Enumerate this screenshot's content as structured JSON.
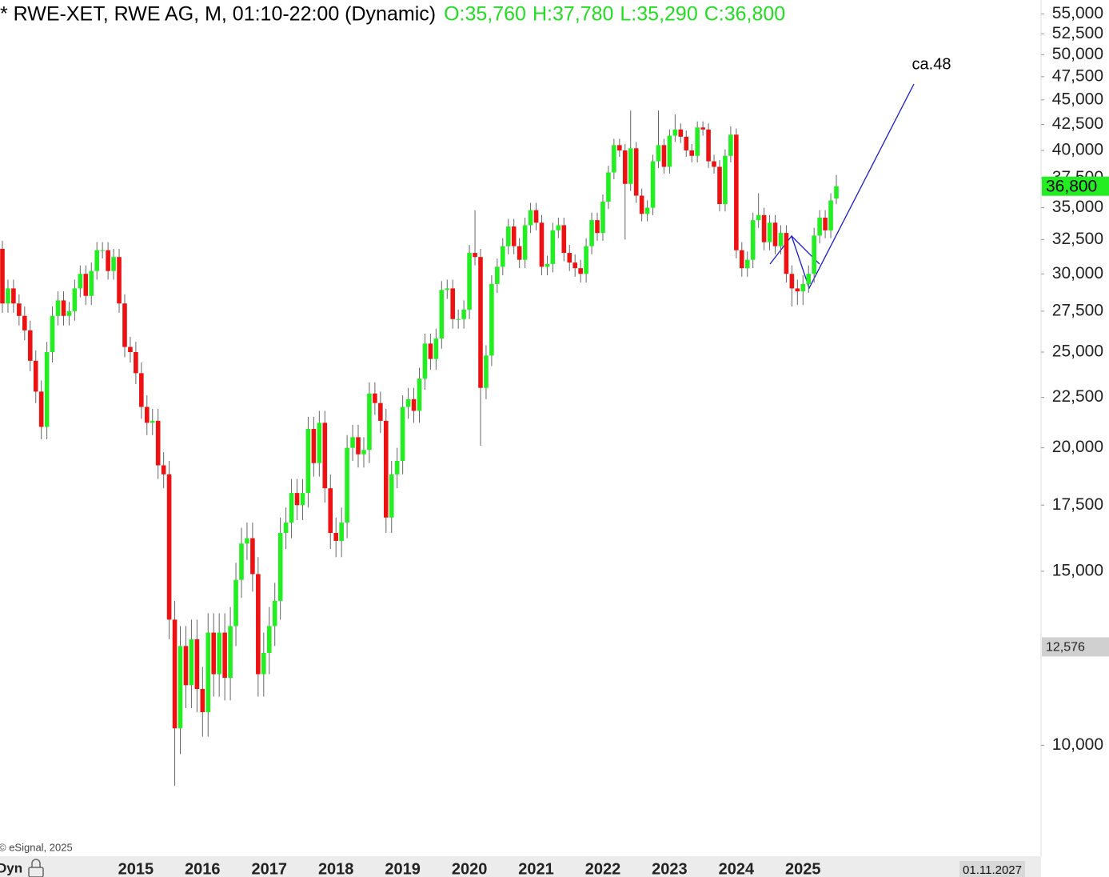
{
  "chart_data": {
    "type": "candlestick",
    "title": "* RWE-XET, RWE AG, M, 01:10-22:00 (Dynamic)",
    "ohlc_labels": [
      "O:35,760",
      "H:37,780",
      "L:35,290",
      "C:36,800"
    ],
    "annotation": "ca.48",
    "copyright": "© eSignal, 2025",
    "mode_label": "Dyn",
    "date_tag": "01.11.2027",
    "last_price": {
      "value": 36.8,
      "label": "36,800"
    },
    "marker_price": {
      "value": 12.576,
      "label": "12,576"
    },
    "log_scale": true,
    "up_color": "#22ee22",
    "down_color": "#ee1111",
    "ylim": [
      7.72,
      56.8
    ],
    "yticks": [
      {
        "value": 10,
        "label": "10,000"
      },
      {
        "value": 15,
        "label": "15,000"
      },
      {
        "value": 17.5,
        "label": "17,500"
      },
      {
        "value": 20,
        "label": "20,000"
      },
      {
        "value": 22.5,
        "label": "22,500"
      },
      {
        "value": 25,
        "label": "25,000"
      },
      {
        "value": 27.5,
        "label": "27,500"
      },
      {
        "value": 30,
        "label": "30,000"
      },
      {
        "value": 32.5,
        "label": "32,500"
      },
      {
        "value": 35,
        "label": "35,000"
      },
      {
        "value": 37.5,
        "label": "37,500"
      },
      {
        "value": 40,
        "label": "40,000"
      },
      {
        "value": 42.5,
        "label": "42,500"
      },
      {
        "value": 45,
        "label": "45,000"
      },
      {
        "value": 47.5,
        "label": "47,500"
      },
      {
        "value": 50,
        "label": "50,000"
      },
      {
        "value": 52.5,
        "label": "52,500"
      },
      {
        "value": 55,
        "label": "55,000"
      }
    ],
    "categories": [
      null,
      null,
      null,
      null,
      null,
      null,
      null,
      null,
      null,
      null,
      null,
      null,
      null,
      null,
      null,
      null,
      null,
      null,
      null,
      null,
      null,
      null,
      null,
      null,
      "2015",
      null,
      null,
      null,
      null,
      null,
      null,
      null,
      null,
      null,
      null,
      null,
      "2016",
      null,
      null,
      null,
      null,
      null,
      null,
      null,
      null,
      null,
      null,
      null,
      "2017",
      null,
      null,
      null,
      null,
      null,
      null,
      null,
      null,
      null,
      null,
      null,
      "2018",
      null,
      null,
      null,
      null,
      null,
      null,
      null,
      null,
      null,
      null,
      null,
      "2019",
      null,
      null,
      null,
      null,
      null,
      null,
      null,
      null,
      null,
      null,
      null,
      "2020",
      null,
      null,
      null,
      null,
      null,
      null,
      null,
      null,
      null,
      null,
      null,
      "2021",
      null,
      null,
      null,
      null,
      null,
      null,
      null,
      null,
      null,
      null,
      null,
      "2022",
      null,
      null,
      null,
      null,
      null,
      null,
      null,
      null,
      null,
      null,
      null,
      "2023",
      null,
      null,
      null,
      null,
      null,
      null,
      null,
      null,
      null,
      null,
      null,
      "2024",
      null,
      null,
      null,
      null,
      null,
      null,
      null,
      null,
      null,
      null,
      null,
      "2025",
      null,
      null,
      null,
      null,
      null,
      null
    ],
    "open": [
      31.8,
      28.0,
      29.0,
      28.0,
      27.2,
      26.3,
      24.5,
      22.8,
      21.0,
      25.0,
      27.2,
      28.2,
      27.2,
      27.5,
      29.0,
      30.0,
      28.5,
      30.2,
      31.7,
      31.7,
      30.2,
      31.2,
      28.0,
      25.3,
      25.0,
      23.8,
      22.0,
      21.2,
      21.3,
      19.2,
      18.8,
      13.4,
      10.4,
      12.6,
      11.5,
      12.8,
      11.4,
      10.8,
      13.0,
      11.8,
      13.0,
      11.7,
      13.2,
      14.7,
      16.0,
      16.2,
      14.9,
      11.8,
      12.4,
      13.2,
      14.0,
      16.4,
      16.8,
      18.0,
      17.5,
      18.0,
      20.9,
      19.3,
      21.2,
      18.2,
      16.4,
      16.1,
      16.8,
      20.0,
      20.5,
      19.7,
      19.9,
      22.7,
      22.2,
      21.3,
      17.0,
      18.8,
      19.4,
      22.0,
      22.4,
      21.8,
      23.5,
      25.5,
      24.6,
      25.8,
      28.9,
      29.0,
      27.0,
      27.0,
      27.6,
      31.5,
      31.2,
      23.0,
      24.8,
      29.3,
      30.5,
      32.0,
      33.5,
      32.0,
      31.0,
      33.6,
      34.8,
      33.8,
      30.5,
      30.7,
      33.2,
      33.6,
      31.5,
      30.8,
      30.4,
      30.0,
      32.0,
      34.0,
      33.0,
      35.5,
      38.0,
      40.5,
      40.0,
      37.0,
      40.2,
      36.0,
      34.5,
      35.0,
      39.0,
      40.5,
      38.5,
      41.4,
      42.0,
      41.3,
      40.0,
      39.5,
      42.2,
      42.0,
      39.0,
      38.5,
      35.3,
      39.5,
      41.5,
      31.7,
      30.4,
      31.0,
      34.0,
      34.4,
      32.3,
      33.8,
      32.0,
      33.0,
      30.0,
      29.0,
      28.8,
      29.3,
      30.0,
      32.8,
      34.2,
      33.2,
      35.76
    ],
    "high": [
      32.4,
      29.6,
      29.6,
      28.6,
      27.8,
      26.9,
      25.1,
      23.4,
      25.6,
      27.8,
      28.8,
      28.8,
      28.1,
      29.6,
      30.6,
      30.6,
      30.8,
      32.3,
      32.3,
      32.3,
      31.8,
      31.8,
      28.6,
      25.9,
      25.6,
      24.4,
      22.6,
      21.9,
      21.9,
      19.8,
      19.4,
      14.0,
      13.2,
      13.2,
      13.4,
      13.4,
      12.0,
      13.6,
      13.6,
      13.6,
      13.6,
      13.8,
      15.3,
      16.6,
      16.8,
      16.8,
      15.5,
      13.0,
      13.8,
      14.6,
      17.0,
      17.4,
      18.6,
      18.6,
      18.6,
      21.5,
      21.5,
      21.8,
      21.8,
      18.8,
      17.0,
      17.4,
      20.6,
      21.1,
      21.1,
      20.5,
      23.3,
      23.3,
      22.8,
      21.9,
      19.4,
      20.0,
      22.6,
      23.0,
      23.0,
      24.1,
      26.1,
      26.1,
      26.4,
      29.5,
      29.6,
      29.6,
      27.6,
      28.2,
      32.1,
      34.8,
      31.8,
      25.4,
      29.9,
      31.1,
      32.6,
      34.1,
      34.1,
      32.6,
      34.2,
      35.4,
      35.4,
      34.4,
      31.3,
      33.8,
      34.2,
      34.2,
      32.1,
      31.4,
      31.0,
      32.6,
      34.6,
      34.6,
      36.1,
      38.6,
      41.1,
      41.1,
      40.6,
      43.9,
      40.8,
      36.6,
      35.6,
      39.6,
      43.9,
      41.1,
      42.0,
      43.5,
      42.6,
      41.9,
      40.6,
      42.8,
      42.8,
      42.6,
      39.6,
      39.1,
      40.1,
      42.3,
      42.1,
      32.3,
      31.6,
      34.6,
      36.2,
      35.0,
      34.4,
      34.4,
      33.6,
      33.6,
      30.6,
      29.6,
      29.9,
      30.6,
      33.4,
      34.8,
      34.8,
      36.2,
      37.78
    ],
    "low": [
      27.4,
      27.4,
      27.4,
      26.6,
      25.7,
      23.9,
      22.2,
      20.4,
      20.4,
      24.4,
      26.6,
      26.6,
      26.6,
      26.9,
      28.4,
      27.9,
      27.9,
      29.6,
      31.1,
      29.6,
      29.6,
      27.4,
      24.7,
      24.4,
      23.2,
      21.4,
      20.6,
      20.6,
      18.6,
      18.2,
      12.8,
      9.1,
      9.8,
      10.9,
      10.9,
      10.8,
      10.2,
      10.2,
      11.2,
      11.2,
      11.1,
      11.1,
      12.6,
      14.1,
      15.4,
      14.3,
      11.2,
      11.2,
      11.8,
      12.6,
      13.4,
      15.8,
      16.2,
      16.9,
      16.9,
      17.4,
      18.7,
      18.7,
      17.6,
      15.8,
      15.5,
      15.5,
      16.2,
      19.4,
      19.1,
      19.1,
      19.3,
      21.6,
      20.7,
      16.4,
      16.4,
      18.2,
      18.8,
      21.4,
      21.2,
      21.2,
      22.9,
      24.0,
      24.0,
      25.2,
      28.3,
      26.4,
      26.4,
      26.4,
      27.0,
      30.6,
      20.1,
      22.4,
      24.2,
      28.7,
      29.9,
      31.4,
      31.4,
      30.4,
      30.4,
      33.0,
      33.2,
      29.9,
      29.9,
      30.1,
      32.6,
      30.9,
      30.2,
      29.8,
      29.4,
      29.4,
      31.4,
      32.4,
      32.4,
      34.9,
      37.4,
      39.4,
      32.5,
      36.4,
      35.4,
      33.9,
      33.9,
      34.4,
      38.4,
      37.9,
      37.9,
      40.8,
      40.7,
      39.4,
      38.9,
      38.9,
      41.4,
      38.4,
      37.9,
      34.7,
      34.7,
      38.9,
      31.1,
      29.8,
      29.8,
      30.4,
      33.4,
      31.7,
      31.7,
      31.4,
      31.4,
      29.4,
      27.8,
      27.9,
      27.9,
      28.7,
      29.4,
      32.2,
      32.6,
      32.6,
      35.29
    ],
    "close": [
      28.0,
      29.0,
      28.0,
      27.2,
      26.3,
      24.5,
      22.8,
      21.0,
      25.0,
      27.2,
      28.2,
      27.2,
      27.5,
      29.0,
      30.0,
      28.5,
      30.2,
      31.7,
      31.7,
      30.2,
      31.2,
      28.0,
      25.3,
      25.0,
      23.8,
      22.0,
      21.2,
      21.3,
      19.2,
      18.8,
      13.4,
      10.4,
      12.6,
      11.5,
      12.8,
      11.4,
      10.8,
      13.0,
      11.8,
      13.0,
      11.7,
      13.2,
      14.7,
      16.0,
      16.2,
      14.9,
      11.8,
      12.4,
      13.2,
      14.0,
      16.4,
      16.8,
      18.0,
      17.5,
      18.0,
      20.9,
      19.3,
      21.2,
      18.2,
      16.4,
      16.1,
      16.8,
      20.0,
      20.5,
      19.7,
      19.9,
      22.7,
      22.2,
      21.3,
      17.0,
      18.8,
      19.4,
      22.0,
      22.4,
      21.8,
      23.5,
      25.5,
      24.6,
      25.8,
      28.9,
      29.0,
      27.0,
      27.0,
      27.6,
      31.5,
      31.2,
      23.0,
      24.8,
      29.3,
      30.5,
      32.0,
      33.5,
      32.0,
      31.0,
      33.6,
      34.8,
      33.8,
      30.5,
      30.7,
      33.2,
      33.6,
      31.5,
      30.8,
      30.4,
      30.0,
      32.0,
      34.0,
      33.0,
      35.5,
      38.0,
      40.5,
      40.0,
      37.0,
      40.2,
      36.0,
      34.5,
      35.0,
      39.0,
      40.5,
      38.5,
      41.4,
      42.0,
      41.3,
      40.0,
      39.5,
      42.2,
      42.0,
      39.0,
      38.5,
      35.3,
      39.5,
      41.5,
      31.7,
      30.4,
      31.0,
      34.0,
      34.4,
      32.3,
      33.8,
      32.0,
      33.0,
      30.0,
      29.0,
      28.8,
      29.3,
      30.0,
      32.8,
      34.2,
      33.2,
      35.6,
      36.8
    ]
  }
}
